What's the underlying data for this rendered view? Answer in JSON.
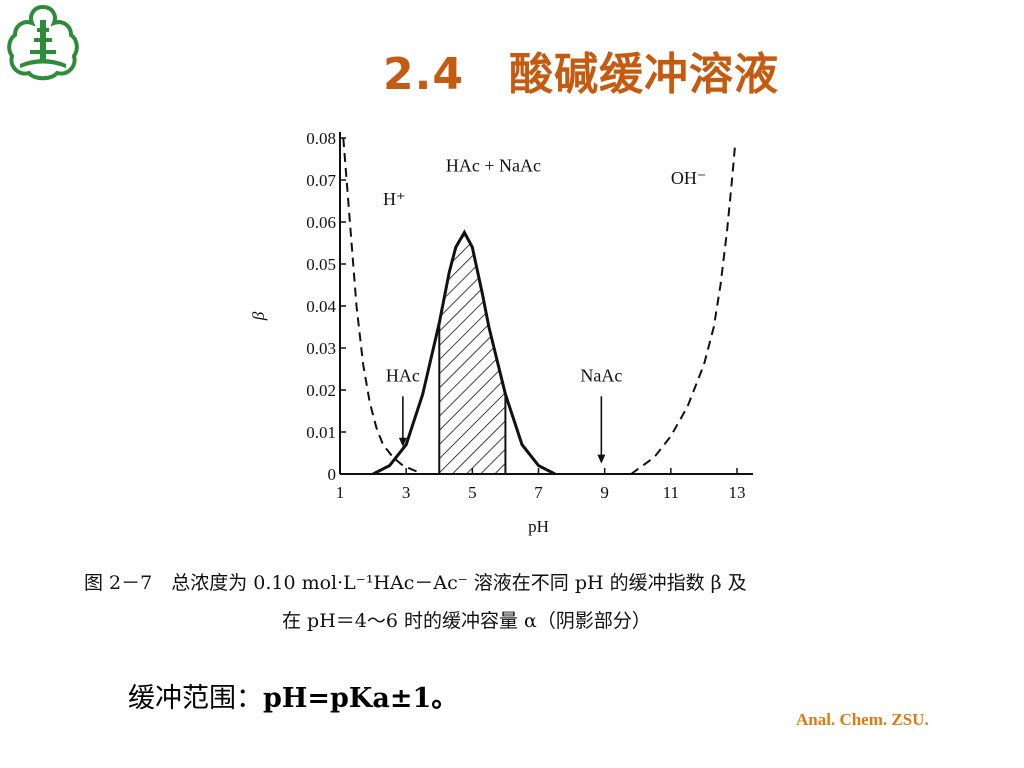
{
  "slide": {
    "title": "2.4　酸碱缓冲溶液",
    "caption_line1": "图 2－7　总浓度为 0.10 mol·L⁻¹HAc－Ac⁻ 溶液在不同 pH 的缓冲指数 β 及",
    "caption_line2": "在 pH＝4～6 时的缓冲容量 α（阴影部分）",
    "range_label": "缓冲范围：",
    "range_value": "pH=pKa±1。",
    "footer": "Anal. Chem. ZSU."
  },
  "colors": {
    "title": "#c55a11",
    "footer": "#e07a10",
    "logo": "#2e8b3a"
  },
  "icons": {
    "logo": "university-emblem-icon"
  },
  "chart_data": {
    "type": "line",
    "xlabel": "pH",
    "ylabel": "β",
    "xlim": [
      1,
      13
    ],
    "ylim": [
      0,
      0.08
    ],
    "xticks": [
      1,
      3,
      5,
      7,
      9,
      11,
      13
    ],
    "yticks": [
      0,
      0.01,
      0.02,
      0.03,
      0.04,
      0.05,
      0.06,
      0.07,
      0.08
    ],
    "ytick_labels": [
      "0",
      "0.01",
      "0.02",
      "0.03",
      "0.04",
      "0.05",
      "0.06",
      "0.07",
      "0.08"
    ],
    "shaded_range": [
      4,
      6
    ],
    "series": [
      {
        "name": "H⁺",
        "style": "dashed",
        "x": [
          1.1,
          1.3,
          1.5,
          1.7,
          1.9,
          2.1,
          2.3,
          2.6,
          2.9,
          3.2,
          3.5
        ],
        "values": [
          0.08,
          0.06,
          0.04,
          0.026,
          0.017,
          0.011,
          0.007,
          0.004,
          0.002,
          0.001,
          0.0
        ]
      },
      {
        "name": "HAc + NaAc",
        "style": "solid",
        "x": [
          2.0,
          2.5,
          3.0,
          3.5,
          4.0,
          4.3,
          4.5,
          4.76,
          5.0,
          5.3,
          5.5,
          6.0,
          6.5,
          7.0,
          7.5
        ],
        "values": [
          0.0,
          0.002,
          0.007,
          0.019,
          0.036,
          0.048,
          0.054,
          0.0575,
          0.054,
          0.043,
          0.035,
          0.019,
          0.007,
          0.002,
          0.0
        ]
      },
      {
        "name": "OH⁻",
        "style": "dashed",
        "x": [
          9.8,
          10.5,
          11.0,
          11.5,
          12.0,
          12.3,
          12.5,
          12.7,
          12.85,
          12.95
        ],
        "values": [
          0.0,
          0.004,
          0.009,
          0.016,
          0.026,
          0.035,
          0.045,
          0.058,
          0.07,
          0.079
        ]
      }
    ],
    "annotations": [
      {
        "text": "HAc",
        "x": 2.9,
        "arrow_to": 0.006
      },
      {
        "text": "NaAc",
        "x": 8.9,
        "arrow_to": 0.002
      }
    ]
  }
}
